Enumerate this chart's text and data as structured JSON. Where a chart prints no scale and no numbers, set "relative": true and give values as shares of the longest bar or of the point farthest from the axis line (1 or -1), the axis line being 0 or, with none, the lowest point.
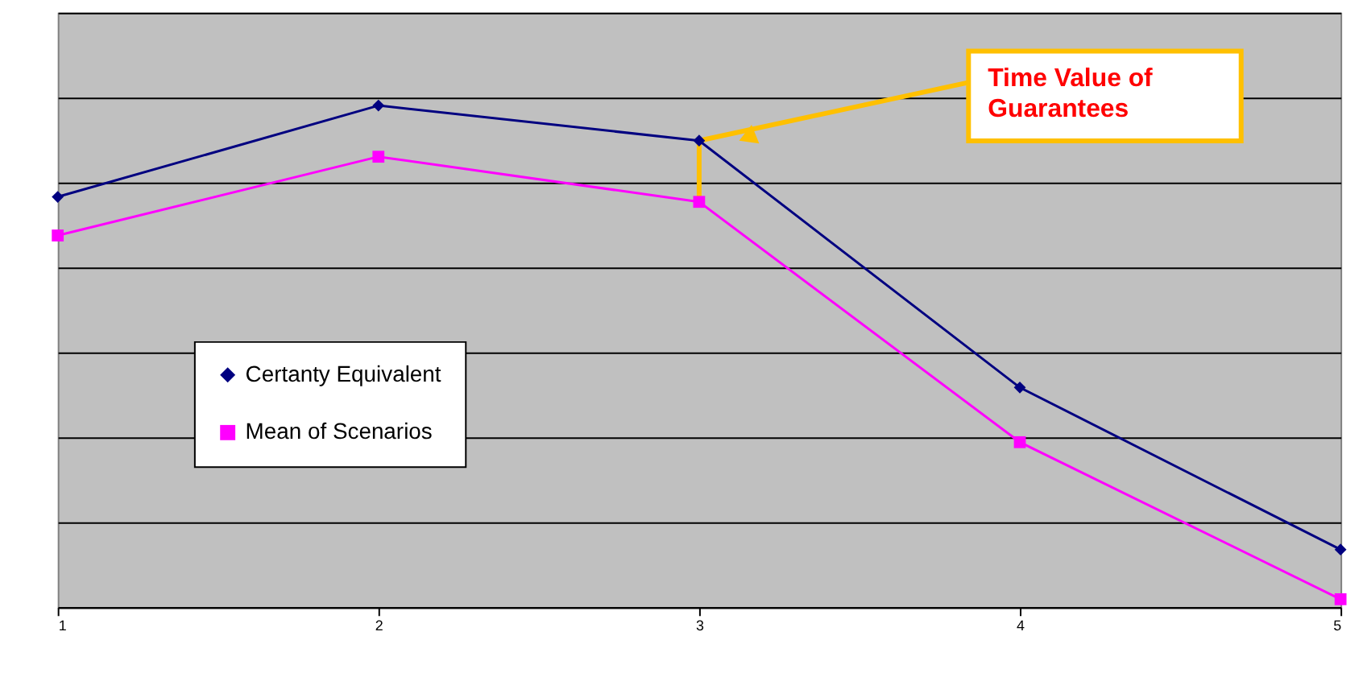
{
  "chart_data": {
    "type": "line",
    "relative": true,
    "categories": [
      "1",
      "2",
      "3",
      "4",
      "5"
    ],
    "series": [
      {
        "name": "Certanty Equivalent",
        "color": "#000080",
        "marker": "diamond",
        "values": [
          0.818,
          1,
          0.93,
          0.438,
          0.115
        ]
      },
      {
        "name": "Mean of Scenarios",
        "color": "#ff00ff",
        "marker": "square",
        "values": [
          0.741,
          0.898,
          0.808,
          0.329,
          0.016
        ]
      }
    ],
    "annotations": [
      {
        "text": "Time Value of Guarantees",
        "x": "3",
        "y": 0.93
      }
    ],
    "legend": "left",
    "grid": "y",
    "line_style": "solid"
  }
}
